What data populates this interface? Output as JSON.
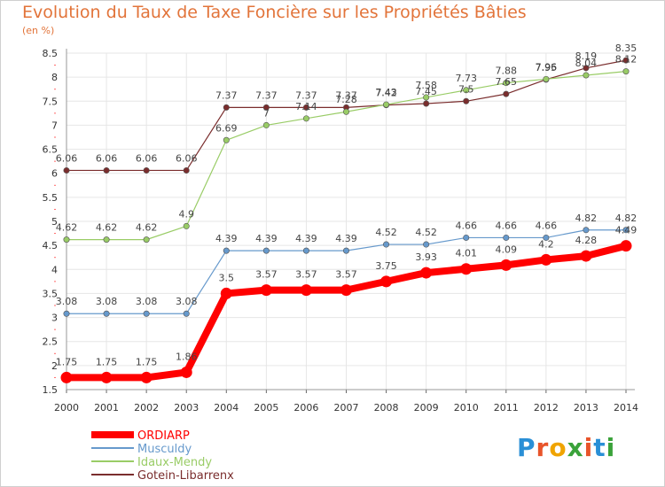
{
  "chart_data": {
    "type": "line",
    "title": "Evolution du Taux de Taxe Foncière sur les Propriétés Bâties",
    "unit": "(en %)",
    "x": [
      "2000",
      "2001",
      "2002",
      "2003",
      "2004",
      "2005",
      "2006",
      "2007",
      "2008",
      "2009",
      "2010",
      "2011",
      "2012",
      "2013",
      "2014"
    ],
    "ylim": [
      1.5,
      8.5
    ],
    "yticks": [
      "1.5",
      "2",
      "2.5",
      "3",
      "3.5",
      "4",
      "4.5",
      "5",
      "5.5",
      "6",
      "6.5",
      "7",
      "7.5",
      "8",
      "8.5"
    ],
    "series": [
      {
        "name": "ORDIARP",
        "color": "#ff0000",
        "values": [
          1.75,
          1.75,
          1.75,
          1.86,
          3.5,
          3.57,
          3.57,
          3.57,
          3.75,
          3.93,
          4.01,
          4.09,
          4.2,
          4.28,
          4.49
        ],
        "labels": [
          "1.75",
          "1.75",
          "1.75",
          "1.86",
          "3.5",
          "3.57",
          "3.57",
          "3.57",
          "3.75",
          "3.93",
          "4.01",
          "4.09",
          "4.2",
          "4.28",
          "4.49"
        ]
      },
      {
        "name": "Musculdy",
        "color": "#6699cc",
        "values": [
          3.08,
          3.08,
          3.08,
          3.08,
          4.39,
          4.39,
          4.39,
          4.39,
          4.52,
          4.52,
          4.66,
          4.66,
          4.66,
          4.82,
          4.82
        ],
        "labels": [
          "3.08",
          "3.08",
          "3.08",
          "3.08",
          "4.39",
          "4.39",
          "4.39",
          "4.39",
          "4.52",
          "4.52",
          "4.66",
          "4.66",
          "4.66",
          "4.82",
          "4.82"
        ]
      },
      {
        "name": "Idaux-Mendy",
        "color": "#99cc66",
        "values": [
          4.62,
          4.62,
          4.62,
          4.9,
          6.69,
          7,
          7.14,
          7.28,
          7.43,
          7.58,
          7.73,
          7.88,
          7.96,
          8.04,
          8.12
        ],
        "labels": [
          "4.62",
          "4.62",
          "4.62",
          "4.9",
          "6.69",
          "7",
          "7.14",
          "7.28",
          "7.43",
          "7.58",
          "7.73",
          "7.88",
          "7.96",
          "8.04",
          "8.12"
        ]
      },
      {
        "name": "Gotein-Libarrenx",
        "color": "#7a2d2d",
        "values": [
          6.06,
          6.06,
          6.06,
          6.06,
          7.37,
          7.37,
          7.37,
          7.37,
          7.42,
          7.45,
          7.5,
          7.65,
          7.95,
          8.19,
          8.35
        ],
        "labels": [
          "6.06",
          "6.06",
          "6.06",
          "6.06",
          "7.37",
          "7.37",
          "7.37",
          "7.37",
          "7.42",
          "7.45",
          "7.5",
          "7.65",
          "7.95",
          "8.19",
          "8.35"
        ]
      }
    ]
  },
  "logo": {
    "letters": [
      "P",
      "r",
      "o",
      "x",
      "i",
      "t",
      "i"
    ],
    "colors": [
      "#2a8fd6",
      "#e8542a",
      "#f0a400",
      "#3aa23a",
      "#e8542a",
      "#2a8fd6",
      "#3aa23a"
    ]
  }
}
